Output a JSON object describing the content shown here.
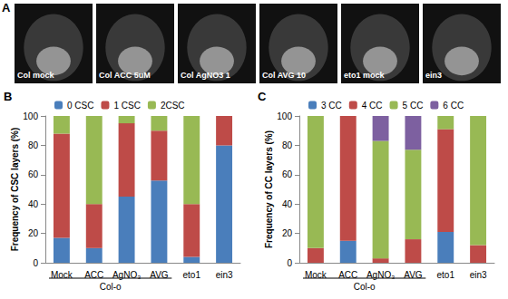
{
  "images": {
    "panel": "A",
    "labels": [
      "Col mock",
      "Col ACC 5uM",
      "Col AgNO3 1",
      "Col AVG 10",
      "eto1 mock",
      "ein3"
    ]
  },
  "chart_data": [
    {
      "type": "bar",
      "panel": "B",
      "stacked": true,
      "grid": false,
      "legend": "top",
      "y_label": "Frequency of CSC layers (%)",
      "categories": [
        "Mock",
        "ACC",
        "AgNO₃",
        "AVG",
        "eto1",
        "ein3"
      ],
      "groups": [
        {
          "label": "Col-o",
          "categories": [
            "Mock",
            "ACC",
            "AgNO₃",
            "AVG"
          ]
        }
      ],
      "ylim": [
        0,
        100
      ],
      "yticks": [
        0,
        20,
        40,
        60,
        80,
        100
      ],
      "series": [
        {
          "name": "0 CSC",
          "color": "#4a7ebb",
          "values": [
            17,
            10,
            45,
            56,
            4,
            80
          ]
        },
        {
          "name": "1 CSC",
          "color": "#be4b48",
          "values": [
            71,
            30,
            50,
            34,
            36,
            20
          ]
        },
        {
          "name": "2CSC",
          "color": "#98b954",
          "values": [
            12,
            60,
            5,
            10,
            60,
            0
          ]
        }
      ]
    },
    {
      "type": "bar",
      "panel": "C",
      "stacked": true,
      "grid": false,
      "legend": "top",
      "y_label": "Frequency of CC layers (%)",
      "categories": [
        "Mock",
        "ACC",
        "AgNO₃",
        "AVG",
        "eto1",
        "ein3"
      ],
      "groups": [
        {
          "label": "Col-o",
          "categories": [
            "Mock",
            "ACC",
            "AgNO₃",
            "AVG"
          ]
        }
      ],
      "ylim": [
        0,
        100
      ],
      "yticks": [
        0,
        20,
        40,
        60,
        80,
        100
      ],
      "series": [
        {
          "name": "3 CC",
          "color": "#4a7ebb",
          "values": [
            0,
            15,
            0,
            0,
            21,
            0
          ]
        },
        {
          "name": "4 CC",
          "color": "#be4b48",
          "values": [
            10,
            85,
            3,
            16,
            70,
            12
          ]
        },
        {
          "name": "5 CC",
          "color": "#98b954",
          "values": [
            90,
            0,
            80,
            61,
            9,
            88
          ]
        },
        {
          "name": "6 CC",
          "color": "#7d60a0",
          "values": [
            0,
            0,
            17,
            23,
            0,
            0
          ]
        }
      ]
    }
  ]
}
